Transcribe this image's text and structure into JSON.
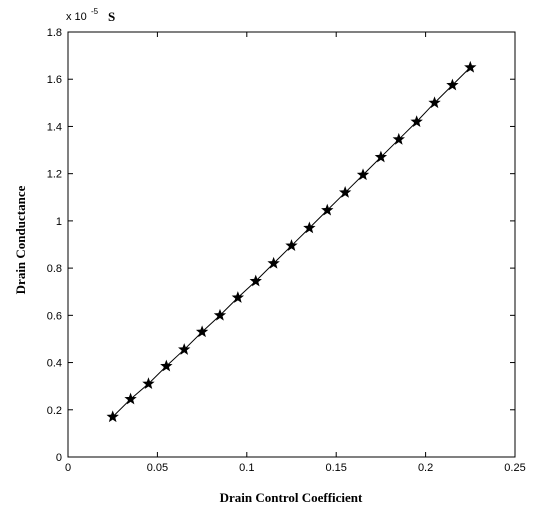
{
  "chart_data": {
    "type": "line",
    "x_label": "Drain Control Coefficient",
    "y_label": "Drain Conductance",
    "y_multiplier": {
      "base": "x 10",
      "exponent": "-5"
    },
    "y_unit": "S",
    "x": [
      0.025,
      0.035,
      0.045,
      0.055,
      0.065,
      0.075,
      0.085,
      0.095,
      0.105,
      0.115,
      0.125,
      0.135,
      0.145,
      0.155,
      0.165,
      0.175,
      0.185,
      0.195,
      0.205,
      0.215,
      0.225
    ],
    "series": [
      {
        "color": "#000000",
        "marker": "star",
        "values": [
          0.17,
          0.245,
          0.31,
          0.385,
          0.455,
          0.53,
          0.6,
          0.675,
          0.745,
          0.82,
          0.895,
          0.97,
          1.045,
          1.12,
          1.195,
          1.27,
          1.345,
          1.42,
          1.5,
          1.575,
          1.65
        ]
      }
    ],
    "xlim": [
      0,
      0.25
    ],
    "xticks": [
      0,
      0.05,
      0.1,
      0.15,
      0.2,
      0.25
    ],
    "ylim": [
      0,
      1.8
    ],
    "yticks": [
      0,
      0.2,
      0.4,
      0.6,
      0.8,
      1,
      1.2,
      1.4,
      1.6,
      1.8
    ]
  }
}
